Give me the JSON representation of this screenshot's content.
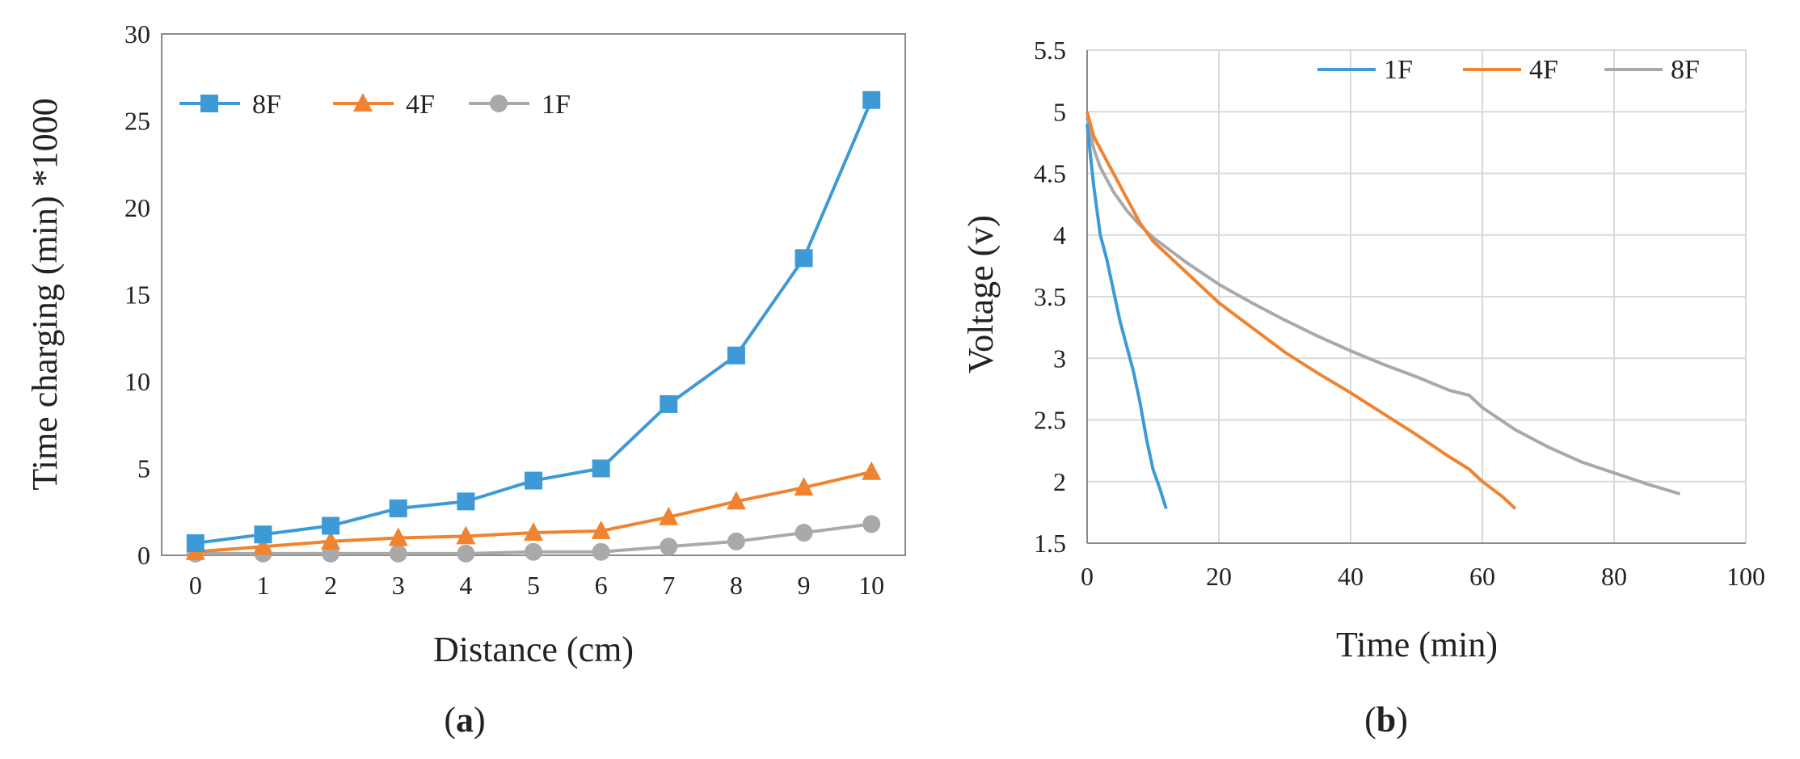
{
  "chart_data": [
    {
      "type": "line",
      "title": "",
      "xlabel": "Distance (cm)",
      "ylabel": "Time charging (min) *1000",
      "categories": [
        "0",
        "1",
        "2",
        "3",
        "4",
        "5",
        "6",
        "7",
        "8",
        "9",
        "10"
      ],
      "ylim": [
        0,
        30
      ],
      "yticks": [
        "0",
        "5",
        "10",
        "15",
        "20",
        "25",
        "30"
      ],
      "grid": false,
      "legend_position": "top-left",
      "panel_label": {
        "open": "(",
        "letter": "a",
        "close": ")"
      },
      "series": [
        {
          "name": "8F",
          "marker": "square",
          "color": "#3d9ad6",
          "values": [
            0.7,
            1.2,
            1.7,
            2.7,
            3.1,
            4.3,
            5.0,
            8.7,
            11.5,
            17.1,
            26.2
          ]
        },
        {
          "name": "4F",
          "marker": "triangle",
          "color": "#f0832f",
          "values": [
            0.2,
            0.5,
            0.8,
            1.0,
            1.1,
            1.3,
            1.4,
            2.2,
            3.1,
            3.9,
            4.8
          ]
        },
        {
          "name": "1F",
          "marker": "circle",
          "color": "#a9a9a9",
          "values": [
            0.1,
            0.1,
            0.1,
            0.1,
            0.1,
            0.2,
            0.2,
            0.5,
            0.8,
            1.3,
            1.8
          ]
        }
      ]
    },
    {
      "type": "line",
      "title": "",
      "xlabel": "Time (min)",
      "ylabel": "Voltage (v)",
      "xlim": [
        0,
        100
      ],
      "ylim": [
        1.5,
        5.5
      ],
      "xticks": [
        "0",
        "20",
        "40",
        "60",
        "80",
        "100"
      ],
      "yticks": [
        "1.5",
        "2",
        "2.5",
        "3",
        "3.5",
        "4",
        "4.5",
        "5",
        "5.5"
      ],
      "grid": true,
      "legend_position": "top-right",
      "panel_label": {
        "open": "(",
        "letter": "b",
        "close": ")"
      },
      "series": [
        {
          "name": "1F",
          "color": "#3d9ad6",
          "x": [
            0,
            1,
            2,
            3,
            4,
            5,
            6,
            7,
            8,
            9,
            10,
            11,
            12
          ],
          "y": [
            4.9,
            4.4,
            4.0,
            3.8,
            3.55,
            3.3,
            3.1,
            2.9,
            2.65,
            2.35,
            2.1,
            1.95,
            1.78
          ]
        },
        {
          "name": "4F",
          "color": "#f0832f",
          "x": [
            0,
            1,
            2,
            4,
            6,
            8,
            10,
            15,
            20,
            25,
            30,
            35,
            40,
            45,
            50,
            55,
            58,
            60,
            63,
            65
          ],
          "y": [
            5.0,
            4.8,
            4.7,
            4.5,
            4.3,
            4.1,
            3.95,
            3.7,
            3.45,
            3.25,
            3.05,
            2.88,
            2.72,
            2.55,
            2.38,
            2.2,
            2.1,
            2.0,
            1.88,
            1.78
          ]
        },
        {
          "name": "8F",
          "color": "#a9a9a9",
          "x": [
            0,
            1,
            2,
            4,
            6,
            8,
            10,
            15,
            20,
            25,
            30,
            35,
            40,
            45,
            50,
            55,
            58,
            60,
            65,
            70,
            75,
            80,
            85,
            90
          ],
          "y": [
            4.95,
            4.7,
            4.55,
            4.35,
            4.2,
            4.08,
            3.98,
            3.78,
            3.6,
            3.45,
            3.31,
            3.18,
            3.06,
            2.95,
            2.85,
            2.74,
            2.7,
            2.6,
            2.42,
            2.28,
            2.16,
            2.07,
            1.98,
            1.9
          ]
        }
      ]
    }
  ]
}
